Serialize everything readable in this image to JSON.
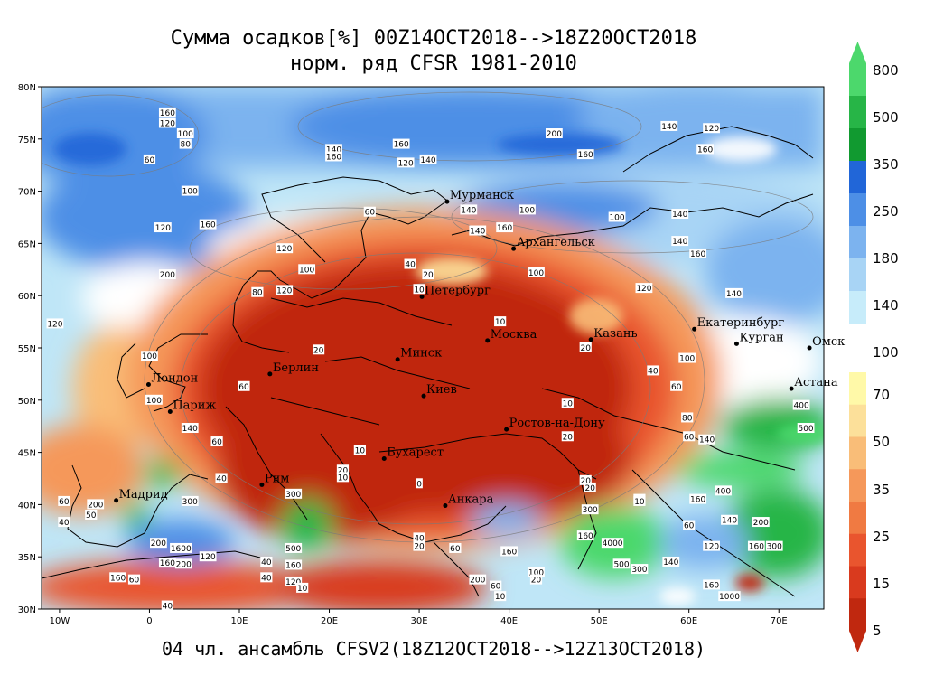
{
  "title_line1": "Сумма осадков[%] 00Z14OCT2018-->18Z20OCT2018",
  "title_line2": "норм. ряд CFSR 1981-2010",
  "footer": "04 чл. ансамбль CFSV2(18Z12OCT2018-->12Z13OCT2018)",
  "map": {
    "lon_range": [
      -12,
      75
    ],
    "lat_range": [
      30,
      80
    ],
    "lon_ticks": [
      {
        "value": -10,
        "label": "10W"
      },
      {
        "value": 0,
        "label": "0"
      },
      {
        "value": 10,
        "label": "10E"
      },
      {
        "value": 20,
        "label": "20E"
      },
      {
        "value": 30,
        "label": "30E"
      },
      {
        "value": 40,
        "label": "40E"
      },
      {
        "value": 50,
        "label": "50E"
      },
      {
        "value": 60,
        "label": "60E"
      },
      {
        "value": 70,
        "label": "70E"
      }
    ],
    "lat_ticks": [
      {
        "value": 80,
        "label": "80N"
      },
      {
        "value": 75,
        "label": "75N"
      },
      {
        "value": 70,
        "label": "70N"
      },
      {
        "value": 65,
        "label": "65N"
      },
      {
        "value": 60,
        "label": "60N"
      },
      {
        "value": 55,
        "label": "55N"
      },
      {
        "value": 50,
        "label": "50N"
      },
      {
        "value": 45,
        "label": "45N"
      },
      {
        "value": 40,
        "label": "40N"
      },
      {
        "value": 35,
        "label": "35N"
      },
      {
        "value": 30,
        "label": "30N"
      }
    ],
    "cities": [
      {
        "name": "Мурманск",
        "lon": 33.1,
        "lat": 69.0
      },
      {
        "name": "Архангельск",
        "lon": 40.5,
        "lat": 64.5
      },
      {
        "name": "Петербург",
        "lon": 30.3,
        "lat": 59.9
      },
      {
        "name": "Екатеринбург",
        "lon": 60.6,
        "lat": 56.8
      },
      {
        "name": "Москва",
        "lon": 37.6,
        "lat": 55.7
      },
      {
        "name": "Казань",
        "lon": 49.1,
        "lat": 55.8
      },
      {
        "name": "Курган",
        "lon": 65.3,
        "lat": 55.4
      },
      {
        "name": "Минск",
        "lon": 27.6,
        "lat": 53.9
      },
      {
        "name": "Омск",
        "lon": 73.4,
        "lat": 55.0
      },
      {
        "name": "Берлин",
        "lon": 13.4,
        "lat": 52.5
      },
      {
        "name": "Лондон",
        "lon": -0.1,
        "lat": 51.5
      },
      {
        "name": "Киев",
        "lon": 30.5,
        "lat": 50.4
      },
      {
        "name": "Астана",
        "lon": 71.4,
        "lat": 51.1
      },
      {
        "name": "Париж",
        "lon": 2.3,
        "lat": 48.9
      },
      {
        "name": "Ростов-на-Дону",
        "lon": 39.7,
        "lat": 47.2
      },
      {
        "name": "Бухарест",
        "lon": 26.1,
        "lat": 44.4
      },
      {
        "name": "Рим",
        "lon": 12.5,
        "lat": 41.9
      },
      {
        "name": "Мадрид",
        "lon": -3.7,
        "lat": 40.4
      },
      {
        "name": "Анкара",
        "lon": 32.9,
        "lat": 39.9
      }
    ],
    "contour_labels": [
      {
        "t": "160",
        "lon": 2,
        "lat": 77.5
      },
      {
        "t": "120",
        "lon": 2,
        "lat": 76.5
      },
      {
        "t": "100",
        "lon": 4,
        "lat": 75.5
      },
      {
        "t": "80",
        "lon": 4,
        "lat": 74.5
      },
      {
        "t": "60",
        "lon": 0,
        "lat": 73
      },
      {
        "t": "140",
        "lon": 20.5,
        "lat": 74
      },
      {
        "t": "160",
        "lon": 20.5,
        "lat": 73.3
      },
      {
        "t": "160",
        "lon": 28,
        "lat": 74.5
      },
      {
        "t": "120",
        "lon": 28.5,
        "lat": 72.7
      },
      {
        "t": "140",
        "lon": 31,
        "lat": 73
      },
      {
        "t": "100",
        "lon": 4.5,
        "lat": 70
      },
      {
        "t": "120",
        "lon": 1.5,
        "lat": 66.5
      },
      {
        "t": "160",
        "lon": 6.5,
        "lat": 66.8
      },
      {
        "t": "200",
        "lon": 2,
        "lat": 62
      },
      {
        "t": "120",
        "lon": 15,
        "lat": 64.5
      },
      {
        "t": "100",
        "lon": 17.5,
        "lat": 62.5
      },
      {
        "t": "80",
        "lon": 12,
        "lat": 60.3
      },
      {
        "t": "120",
        "lon": 15,
        "lat": 60.5
      },
      {
        "t": "60",
        "lon": 24.5,
        "lat": 68
      },
      {
        "t": "40",
        "lon": 29,
        "lat": 63
      },
      {
        "t": "20",
        "lon": 31,
        "lat": 62
      },
      {
        "t": "10",
        "lon": 30,
        "lat": 60.6
      },
      {
        "t": "140",
        "lon": 35.5,
        "lat": 68.2
      },
      {
        "t": "140",
        "lon": 36.5,
        "lat": 66.2
      },
      {
        "t": "160",
        "lon": 39.5,
        "lat": 66.5
      },
      {
        "t": "100",
        "lon": 42,
        "lat": 68.2
      },
      {
        "t": "100",
        "lon": 43,
        "lat": 62.2
      },
      {
        "t": "200",
        "lon": 45,
        "lat": 75.5
      },
      {
        "t": "160",
        "lon": 48.5,
        "lat": 73.5
      },
      {
        "t": "140",
        "lon": 57.8,
        "lat": 76.2
      },
      {
        "t": "120",
        "lon": 62.5,
        "lat": 76
      },
      {
        "t": "160",
        "lon": 61.8,
        "lat": 74
      },
      {
        "t": "100",
        "lon": 52,
        "lat": 67.5
      },
      {
        "t": "140",
        "lon": 59,
        "lat": 67.8
      },
      {
        "t": "140",
        "lon": 59,
        "lat": 65.2
      },
      {
        "t": "160",
        "lon": 61,
        "lat": 64
      },
      {
        "t": "120",
        "lon": 55,
        "lat": 60.7
      },
      {
        "t": "140",
        "lon": 65,
        "lat": 60.2
      },
      {
        "t": "120",
        "lon": -10.5,
        "lat": 57.3
      },
      {
        "t": "100",
        "lon": 0,
        "lat": 54.2
      },
      {
        "t": "60",
        "lon": 10.5,
        "lat": 51.3
      },
      {
        "t": "100",
        "lon": 0.5,
        "lat": 50
      },
      {
        "t": "140",
        "lon": 4.5,
        "lat": 47.3
      },
      {
        "t": "60",
        "lon": 7.5,
        "lat": 46
      },
      {
        "t": "20",
        "lon": 18.8,
        "lat": 54.8
      },
      {
        "t": "10",
        "lon": 39,
        "lat": 57.5
      },
      {
        "t": "20",
        "lon": 48.5,
        "lat": 55
      },
      {
        "t": "40",
        "lon": 56,
        "lat": 52.8
      },
      {
        "t": "10",
        "lon": 46.5,
        "lat": 49.7
      },
      {
        "t": "80",
        "lon": 59.8,
        "lat": 48.3
      },
      {
        "t": "60",
        "lon": 58.6,
        "lat": 51.3
      },
      {
        "t": "100",
        "lon": 59.8,
        "lat": 54
      },
      {
        "t": "20",
        "lon": 46.5,
        "lat": 46.5
      },
      {
        "t": "10",
        "lon": 23.4,
        "lat": 45.2
      },
      {
        "t": "20",
        "lon": 21.5,
        "lat": 43.3
      },
      {
        "t": "10",
        "lon": 21.5,
        "lat": 42.6
      },
      {
        "t": "0",
        "lon": 30,
        "lat": 42
      },
      {
        "t": "20",
        "lon": 48.5,
        "lat": 42.3
      },
      {
        "t": "20",
        "lon": 49,
        "lat": 41.6
      },
      {
        "t": "10",
        "lon": 54.5,
        "lat": 40.5
      },
      {
        "t": "60",
        "lon": 60,
        "lat": 46.5
      },
      {
        "t": "140",
        "lon": 62,
        "lat": 46.2
      },
      {
        "t": "400",
        "lon": 72.5,
        "lat": 49.5
      },
      {
        "t": "500",
        "lon": 73,
        "lat": 47.3
      },
      {
        "t": "400",
        "lon": 63.8,
        "lat": 41.3
      },
      {
        "t": "160",
        "lon": 61,
        "lat": 40.5
      },
      {
        "t": "60",
        "lon": 60,
        "lat": 38
      },
      {
        "t": "140",
        "lon": 64.5,
        "lat": 38.5
      },
      {
        "t": "200",
        "lon": 68,
        "lat": 38.3
      },
      {
        "t": "160",
        "lon": 67.5,
        "lat": 36
      },
      {
        "t": "300",
        "lon": 69.5,
        "lat": 36
      },
      {
        "t": "120",
        "lon": 62.5,
        "lat": 36
      },
      {
        "t": "4000",
        "lon": 51.5,
        "lat": 36.3
      },
      {
        "t": "500",
        "lon": 52.5,
        "lat": 34.3
      },
      {
        "t": "300",
        "lon": 54.5,
        "lat": 33.8
      },
      {
        "t": "140",
        "lon": 58,
        "lat": 34.5
      },
      {
        "t": "160",
        "lon": 62.5,
        "lat": 32.3
      },
      {
        "t": "1000",
        "lon": 64.5,
        "lat": 31.2
      },
      {
        "t": "300",
        "lon": 49,
        "lat": 39.5
      },
      {
        "t": "160",
        "lon": 48.5,
        "lat": 37
      },
      {
        "t": "10",
        "lon": 54.5,
        "lat": 40.3
      },
      {
        "t": "160",
        "lon": 40,
        "lat": 35.5
      },
      {
        "t": "100",
        "lon": 43,
        "lat": 33.5
      },
      {
        "t": "20",
        "lon": 43,
        "lat": 32.8
      },
      {
        "t": "60",
        "lon": 38.5,
        "lat": 32.2
      },
      {
        "t": "10",
        "lon": 39,
        "lat": 31.2
      },
      {
        "t": "200",
        "lon": 36.5,
        "lat": 32.8
      },
      {
        "t": "60",
        "lon": 34,
        "lat": 35.8
      },
      {
        "t": "40",
        "lon": 30,
        "lat": 36.8
      },
      {
        "t": "20",
        "lon": 30,
        "lat": 36
      },
      {
        "t": "300",
        "lon": 16,
        "lat": 41
      },
      {
        "t": "500",
        "lon": 16,
        "lat": 35.8
      },
      {
        "t": "160",
        "lon": 16,
        "lat": 34.2
      },
      {
        "t": "120",
        "lon": 16,
        "lat": 32.6
      },
      {
        "t": "40",
        "lon": 13,
        "lat": 33
      },
      {
        "t": "10",
        "lon": 17,
        "lat": 32
      },
      {
        "t": "200",
        "lon": 1,
        "lat": 36.3
      },
      {
        "t": "1600",
        "lon": 3.5,
        "lat": 35.8
      },
      {
        "t": "160",
        "lon": 2,
        "lat": 34.4
      },
      {
        "t": "200",
        "lon": 3.8,
        "lat": 34.3
      },
      {
        "t": "120",
        "lon": 6.5,
        "lat": 35
      },
      {
        "t": "160",
        "lon": -3.5,
        "lat": 33
      },
      {
        "t": "60",
        "lon": -1.7,
        "lat": 32.8
      },
      {
        "t": "40",
        "lon": 2,
        "lat": 30.3
      },
      {
        "t": "200",
        "lon": -6,
        "lat": 40
      },
      {
        "t": "50",
        "lon": -6.5,
        "lat": 39
      },
      {
        "t": "60",
        "lon": -9.5,
        "lat": 40.3
      },
      {
        "t": "40",
        "lon": -9.5,
        "lat": 38.3
      },
      {
        "t": "300",
        "lon": 4.5,
        "lat": 40.3
      },
      {
        "t": "40",
        "lon": 8,
        "lat": 42.5
      },
      {
        "t": "40",
        "lon": 13,
        "lat": 34.5
      }
    ]
  },
  "colorbar": {
    "labels": [
      "800",
      "500",
      "350",
      "250",
      "180",
      "140",
      "100",
      "70",
      "50",
      "35",
      "25",
      "15",
      "5"
    ],
    "upper_colors": [
      "#4cd86c",
      "#27b547",
      "#119a30",
      "#2166d8",
      "#4d8fe6",
      "#7cb3ef",
      "#a8d4f5",
      "#c7ecfa"
    ],
    "lower_colors": [
      "#fff9a8",
      "#fce09a",
      "#f9bd78",
      "#f5985a",
      "#f07a42",
      "#e9552e",
      "#d93a1e",
      "#c0280f"
    ]
  }
}
